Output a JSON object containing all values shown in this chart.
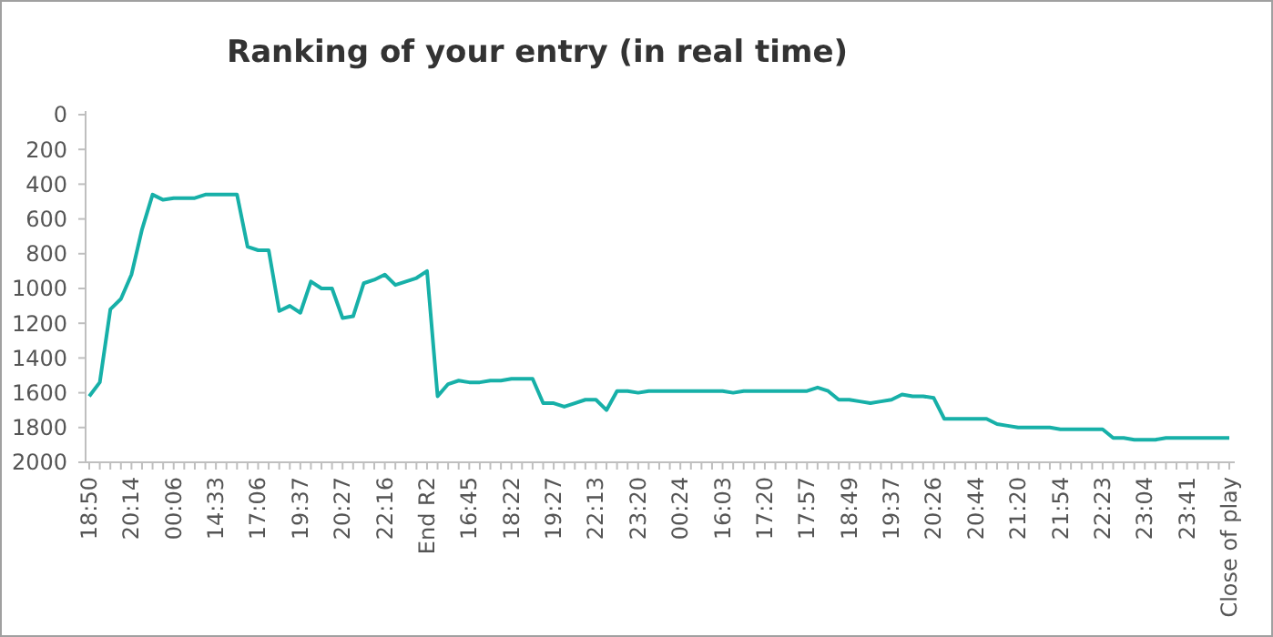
{
  "chart_data": {
    "type": "line",
    "title": "Ranking of your entry (in real time)",
    "categories": [
      "18:50",
      null,
      null,
      null,
      "20:14",
      null,
      null,
      null,
      "00:06",
      null,
      null,
      null,
      "14:33",
      null,
      null,
      null,
      "17:06",
      null,
      null,
      null,
      "19:37",
      null,
      null,
      null,
      "20:27",
      null,
      null,
      null,
      "22:16",
      null,
      null,
      null,
      "End R2",
      null,
      null,
      null,
      "16:45",
      null,
      null,
      null,
      "18:22",
      null,
      null,
      null,
      "19:27",
      null,
      null,
      null,
      "22:13",
      null,
      null,
      null,
      "23:20",
      null,
      null,
      null,
      "00:24",
      null,
      null,
      null,
      "16:03",
      null,
      null,
      null,
      "17:20",
      null,
      null,
      null,
      "17:57",
      null,
      null,
      null,
      "18:49",
      null,
      null,
      null,
      "19:37",
      null,
      null,
      null,
      "20:26",
      null,
      null,
      null,
      "20:44",
      null,
      null,
      null,
      "21:20",
      null,
      null,
      null,
      "21:54",
      null,
      null,
      null,
      "22:23",
      null,
      null,
      null,
      "23:04",
      null,
      null,
      null,
      "23:41",
      null,
      null,
      null,
      "Close of play"
    ],
    "series": [
      {
        "color": "#17b0a8",
        "values": [
          1620,
          1540,
          1120,
          1060,
          920,
          660,
          460,
          490,
          480,
          480,
          480,
          460,
          460,
          460,
          460,
          760,
          780,
          780,
          1130,
          1100,
          1140,
          960,
          1000,
          1000,
          1170,
          1160,
          970,
          950,
          920,
          980,
          960,
          940,
          900,
          1620,
          1550,
          1530,
          1540,
          1540,
          1530,
          1530,
          1520,
          1520,
          1520,
          1660,
          1660,
          1680,
          1660,
          1640,
          1640,
          1700,
          1590,
          1590,
          1600,
          1590,
          1590,
          1590,
          1590,
          1590,
          1590,
          1590,
          1590,
          1600,
          1590,
          1590,
          1590,
          1590,
          1590,
          1590,
          1590,
          1570,
          1590,
          1640,
          1640,
          1650,
          1660,
          1650,
          1640,
          1610,
          1620,
          1620,
          1630,
          1750,
          1750,
          1750,
          1750,
          1750,
          1780,
          1790,
          1800,
          1800,
          1800,
          1800,
          1810,
          1810,
          1810,
          1810,
          1810,
          1860,
          1860,
          1870,
          1870,
          1870,
          1860,
          1860,
          1860,
          1860,
          1860,
          1860,
          1860
        ]
      }
    ],
    "ylim": [
      2000,
      0
    ],
    "yticks": [
      0,
      200,
      400,
      600,
      800,
      1000,
      1200,
      1400,
      1600,
      1800,
      2000
    ],
    "grid": false,
    "marker": "none",
    "line_style": "solid"
  }
}
